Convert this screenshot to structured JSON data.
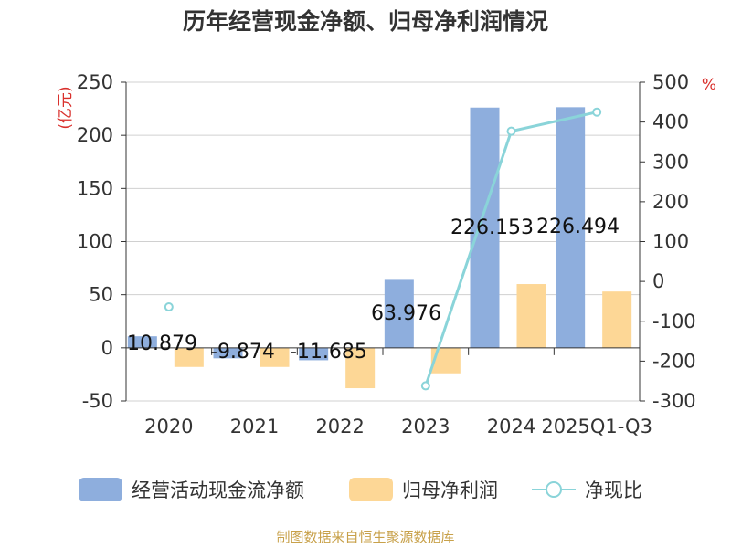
{
  "chart_data": {
    "type": "bar",
    "title": "历年经营现金净额、归母净利润情况",
    "categories": [
      "2020",
      "2021",
      "2022",
      "2023",
      "2024",
      "2025Q1-Q3"
    ],
    "series": [
      {
        "name": "经营活动现金流净额",
        "type": "bar",
        "axis": "left",
        "color": "#8eaedd",
        "values": [
          10.879,
          -9.874,
          -11.685,
          63.976,
          226.153,
          226.494
        ],
        "labels": [
          "10.879",
          "-9.874",
          "-11.685",
          "63.976",
          "226.153",
          "226.494"
        ]
      },
      {
        "name": "归母净利润",
        "type": "bar",
        "axis": "left",
        "color": "#fdd796",
        "values": [
          -18,
          -18,
          -38,
          -24,
          60,
          53
        ]
      },
      {
        "name": "净现比",
        "type": "line",
        "axis": "right",
        "color": "#8ad4d9",
        "values": [
          -64,
          null,
          null,
          -262,
          377,
          425
        ]
      }
    ],
    "y_left": {
      "unit": "(亿元)",
      "min": -50,
      "max": 250,
      "ticks": [
        -50,
        0,
        50,
        100,
        150,
        200,
        250
      ]
    },
    "y_right": {
      "unit": "%",
      "min": -300,
      "max": 500,
      "ticks": [
        -300,
        -200,
        -100,
        0,
        100,
        200,
        300,
        400,
        500
      ]
    },
    "grid": true,
    "legend_position": "bottom"
  },
  "footer": "制图数据来自恒生聚源数据库"
}
